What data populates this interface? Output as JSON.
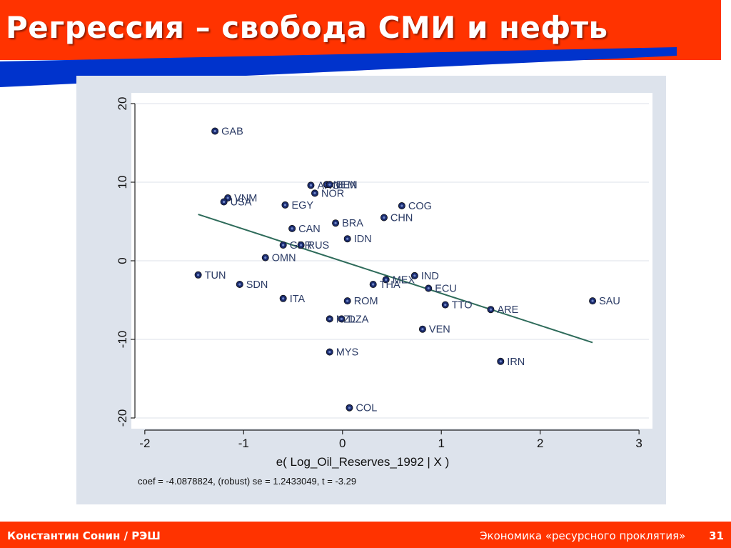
{
  "slide": {
    "title": "Регрессия – свобода СМИ и нефть",
    "footer_left": "Константин Сонин / РЭШ",
    "footer_right": "Экономика «ресурсного проклятия»",
    "page_number": "31"
  },
  "colors": {
    "accent_red": "#ff3300",
    "accent_blue": "#0033cc",
    "panel_bg": "#dde3ec",
    "marker": "#1a2b6e",
    "fit_line": "#2e6b5a"
  },
  "chart_data": {
    "type": "scatter",
    "xlabel": "e( Log_Oil_Reserves_1992 | X )",
    "ylabel": "",
    "note": "coef = -4.0878824, (robust) se = 1.2433049, t = -3.29",
    "xlim": [
      -2.1,
      3.1
    ],
    "ylim": [
      -21,
      21
    ],
    "x_ticks": [
      -2,
      -1,
      0,
      1,
      2,
      3
    ],
    "y_ticks": [
      -20,
      -10,
      0,
      10,
      20
    ],
    "grid": true,
    "points": [
      {
        "label": "GAB",
        "x": -1.29,
        "y": 16.5
      },
      {
        "label": "ARG",
        "x": -0.32,
        "y": 9.6
      },
      {
        "label": "NEM",
        "x": -0.16,
        "y": 9.7
      },
      {
        "label": "BEN",
        "x": -0.13,
        "y": 9.7
      },
      {
        "label": "NOR",
        "x": -0.28,
        "y": 8.6
      },
      {
        "label": "VNM",
        "x": -1.16,
        "y": 8.0
      },
      {
        "label": "USA",
        "x": -1.2,
        "y": 7.5
      },
      {
        "label": "EGY",
        "x": -0.58,
        "y": 7.1
      },
      {
        "label": "COG",
        "x": 0.6,
        "y": 7.0
      },
      {
        "label": "CHN",
        "x": 0.42,
        "y": 5.5
      },
      {
        "label": "BRA",
        "x": -0.07,
        "y": 4.8
      },
      {
        "label": "CAN",
        "x": -0.51,
        "y": 4.1
      },
      {
        "label": "IDN",
        "x": 0.05,
        "y": 2.8
      },
      {
        "label": "GBR",
        "x": -0.6,
        "y": 2.0
      },
      {
        "label": "RUS",
        "x": -0.42,
        "y": 2.0
      },
      {
        "label": "OMN",
        "x": -0.78,
        "y": 0.4
      },
      {
        "label": "TUN",
        "x": -1.46,
        "y": -1.8
      },
      {
        "label": "SDN",
        "x": -1.04,
        "y": -3.0
      },
      {
        "label": "IND",
        "x": 0.73,
        "y": -1.9
      },
      {
        "label": "MEX",
        "x": 0.44,
        "y": -2.4
      },
      {
        "label": "THA",
        "x": 0.31,
        "y": -3.0
      },
      {
        "label": "ECU",
        "x": 0.87,
        "y": -3.5
      },
      {
        "label": "ITA",
        "x": -0.6,
        "y": -4.8
      },
      {
        "label": "ROM",
        "x": 0.05,
        "y": -5.1
      },
      {
        "label": "TTO",
        "x": 1.04,
        "y": -5.6
      },
      {
        "label": "ARE",
        "x": 1.5,
        "y": -6.2
      },
      {
        "label": "SAU",
        "x": 2.53,
        "y": -5.1
      },
      {
        "label": "NZL",
        "x": -0.13,
        "y": -7.4
      },
      {
        "label": "DZA",
        "x": -0.01,
        "y": -7.4
      },
      {
        "label": "VEN",
        "x": 0.81,
        "y": -8.7
      },
      {
        "label": "MYS",
        "x": -0.13,
        "y": -11.6
      },
      {
        "label": "IRN",
        "x": 1.6,
        "y": -12.8
      },
      {
        "label": "COL",
        "x": 0.07,
        "y": -18.7
      }
    ],
    "fit_line": {
      "x": [
        -1.46,
        2.53
      ],
      "y": [
        5.9,
        -10.4
      ]
    }
  }
}
